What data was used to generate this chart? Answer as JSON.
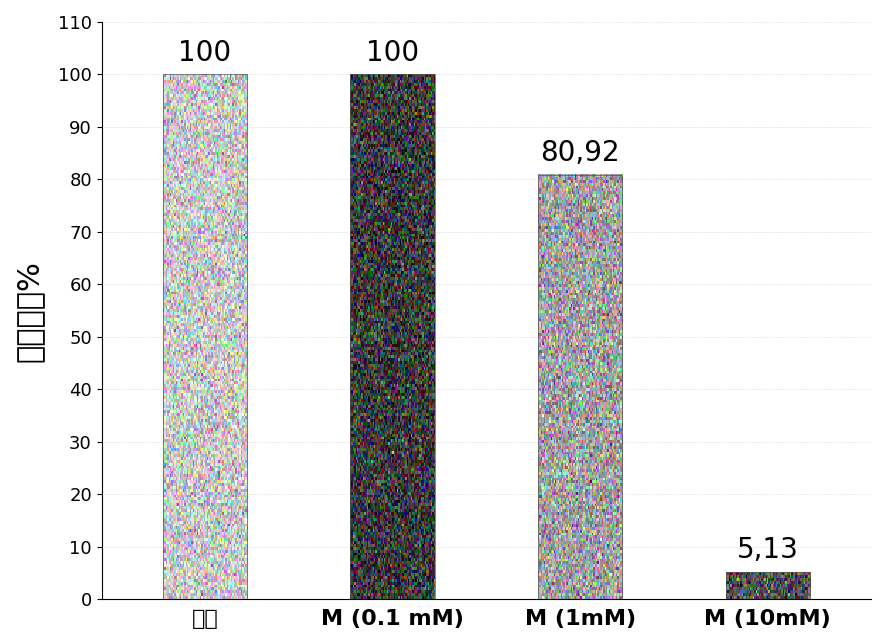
{
  "categories": [
    "对照",
    "M (0.1 mM)",
    "M (1mM)",
    "M (10mM)"
  ],
  "values": [
    100,
    100,
    80.92,
    5.13
  ],
  "value_labels": [
    "100",
    "100",
    "80,92",
    "5,13"
  ],
  "bar_base_colors": [
    "#c8c8c8",
    "#3a3a3a",
    "#a0a0a0",
    "#505050"
  ],
  "bar_noise_levels": [
    0.18,
    0.18,
    0.18,
    0.18
  ],
  "ylabel": "细胞活力%",
  "ylim": [
    0,
    110
  ],
  "yticks": [
    0,
    10,
    20,
    30,
    40,
    50,
    60,
    70,
    80,
    90,
    100,
    110
  ],
  "value_fontsize": 20,
  "ylabel_fontsize": 22,
  "xtick_fontsize": 16,
  "ytick_fontsize": 13,
  "bar_width": 0.45,
  "background_color": "#ffffff",
  "grid_color": "#cccccc",
  "bar_positions": [
    0,
    1,
    2,
    3
  ]
}
